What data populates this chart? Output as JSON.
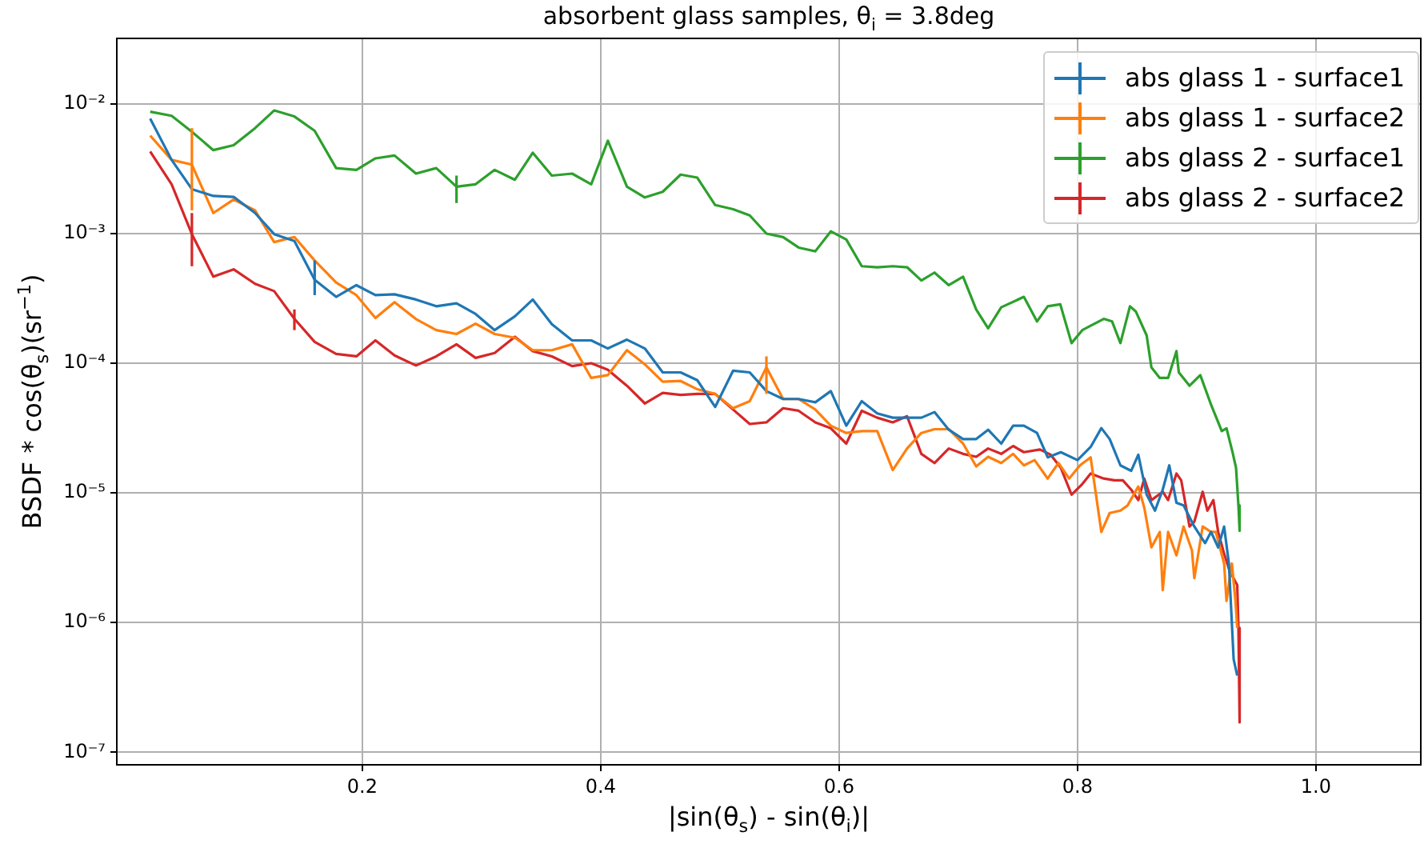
{
  "chart_data": {
    "type": "line",
    "title": "absorbent glass samples, θ$_{i}$ = 3.8deg",
    "xlabel": "|sin(θ$_{s}$) - sin(θ$_{i}$)|",
    "ylabel": "BSDF * cos(θ$_{s}$)(sr$^{−1}$)",
    "log": "y",
    "grid": true,
    "legend": "top right",
    "xlim": [
      -0.006,
      1.088
    ],
    "xticks": [
      0.2,
      0.4,
      0.6,
      0.8,
      {
        "value": 1,
        "label": "1.0"
      }
    ],
    "ylim": [
      8e-08,
      0.032
    ],
    "yticks": [
      {
        "value": 1e-07,
        "label": "10⁻⁷"
      },
      {
        "value": 1e-06,
        "label": "10⁻⁶"
      },
      {
        "value": 1e-05,
        "label": "10⁻⁵"
      },
      {
        "value": 0.0001,
        "label": "10⁻⁴"
      },
      {
        "value": 0.001,
        "label": "10⁻³"
      },
      {
        "value": 0.01,
        "label": "10⁻²"
      }
    ],
    "series": [
      {
        "name": "abs glass 1 - surface1",
        "color": "#1f77b4",
        "x": [
          0.022,
          0.04,
          0.057,
          0.075,
          0.092,
          0.11,
          0.126,
          0.143,
          0.16,
          0.178,
          0.195,
          0.211,
          0.227,
          0.245,
          0.262,
          0.279,
          0.295,
          0.311,
          0.328,
          0.343,
          0.359,
          0.376,
          0.392,
          0.406,
          0.422,
          0.437,
          0.452,
          0.467,
          0.481,
          0.496,
          0.511,
          0.525,
          0.539,
          0.553,
          0.566,
          0.58,
          0.593,
          0.606,
          0.619,
          0.632,
          0.645,
          0.657,
          0.669,
          0.68,
          0.692,
          0.704,
          0.715,
          0.725,
          0.736,
          0.746,
          0.755,
          0.766,
          0.775,
          0.786,
          0.8,
          0.811,
          0.82,
          0.827,
          0.836,
          0.845,
          0.851,
          0.858,
          0.865,
          0.8715,
          0.877,
          0.883,
          0.889,
          0.898,
          0.907,
          0.912,
          0.918,
          0.923,
          0.927,
          0.931,
          0.934
        ],
        "values": [
          0.0077,
          0.0037,
          0.0022,
          0.00195,
          0.00192,
          0.00144,
          0.00099,
          0.000875,
          0.00044,
          0.000325,
          0.0004,
          0.000335,
          0.00034,
          0.00031,
          0.000275,
          0.00029,
          0.00024,
          0.00018,
          0.00023,
          0.00031,
          0.0002,
          0.00015,
          0.00015,
          0.00013,
          0.000152,
          0.00013,
          8.5e-05,
          8.5e-05,
          7.4e-05,
          4.6e-05,
          8.75e-05,
          8.5e-05,
          6.1e-05,
          5.3e-05,
          5.3e-05,
          5e-05,
          6.1e-05,
          3.3e-05,
          5.1e-05,
          4.1e-05,
          3.8e-05,
          3.8e-05,
          3.8e-05,
          4.2e-05,
          3.07e-05,
          2.6e-05,
          2.6e-05,
          3.07e-05,
          2.4e-05,
          3.3e-05,
          3.3e-05,
          2.9e-05,
          1.88e-05,
          2.06e-05,
          1.79e-05,
          2.26e-05,
          3.16e-05,
          2.6e-05,
          1.63e-05,
          1.48e-05,
          1.97e-05,
          9.7e-06,
          7.3e-06,
          1.06e-05,
          1.63e-05,
          8.4e-06,
          8e-06,
          5.5e-06,
          4.1e-06,
          5e-06,
          3.8e-06,
          5.5e-06,
          2.85e-06,
          5.2e-07,
          3.9e-07
        ],
        "errors": [
          null,
          null,
          null,
          null,
          null,
          null,
          null,
          null,
          [
            0.000335,
            0.00062
          ],
          null,
          null,
          null,
          null,
          null,
          null,
          null,
          null,
          null,
          null,
          null,
          null,
          null,
          null,
          null,
          null,
          null,
          null,
          null,
          null,
          null,
          null,
          null,
          null,
          null,
          null,
          null,
          null,
          null,
          null,
          null,
          null,
          null,
          null,
          null,
          null,
          null,
          null,
          null,
          null,
          null,
          null,
          null,
          null,
          null,
          null,
          null,
          null,
          null,
          null,
          null,
          null,
          null,
          null,
          null,
          null,
          null,
          null,
          null,
          null,
          null,
          null,
          null,
          null,
          null,
          null
        ]
      },
      {
        "name": "abs glass 1 - surface2",
        "color": "#ff7f0e",
        "x": [
          0.022,
          0.04,
          0.057,
          0.075,
          0.092,
          0.11,
          0.126,
          0.143,
          0.16,
          0.178,
          0.195,
          0.211,
          0.227,
          0.245,
          0.262,
          0.279,
          0.295,
          0.311,
          0.328,
          0.343,
          0.359,
          0.376,
          0.392,
          0.406,
          0.422,
          0.437,
          0.452,
          0.467,
          0.481,
          0.496,
          0.511,
          0.525,
          0.539,
          0.553,
          0.566,
          0.58,
          0.593,
          0.606,
          0.619,
          0.632,
          0.645,
          0.657,
          0.669,
          0.68,
          0.692,
          0.704,
          0.715,
          0.725,
          0.736,
          0.746,
          0.755,
          0.764,
          0.775,
          0.784,
          0.793,
          0.802,
          0.811,
          0.82,
          0.827,
          0.836,
          0.842,
          0.851,
          0.856,
          0.862,
          0.869,
          0.8715,
          0.876,
          0.883,
          0.889,
          0.896,
          0.898,
          0.905,
          0.912,
          0.916,
          0.923,
          0.925,
          0.9295,
          0.9325,
          0.934
        ],
        "values": [
          0.0057,
          0.0037,
          0.0034,
          0.00144,
          0.00183,
          0.00151,
          0.00086,
          0.00094,
          0.00062,
          0.00042,
          0.000335,
          0.000223,
          0.000296,
          0.000219,
          0.00018,
          0.000168,
          0.000202,
          0.000168,
          0.000157,
          0.000126,
          0.000126,
          0.00014,
          7.7e-05,
          8.1e-05,
          0.000126,
          9.8e-05,
          7.2e-05,
          7.3e-05,
          6.3e-05,
          5.8e-05,
          4.5e-05,
          5.1e-05,
          9.3e-05,
          5.3e-05,
          5.3e-05,
          4.4e-05,
          3.3e-05,
          2.9e-05,
          3e-05,
          3e-05,
          1.5e-05,
          2.2e-05,
          2.9e-05,
          3.1e-05,
          3.1e-05,
          2.4e-05,
          1.6e-05,
          1.9e-05,
          1.7e-05,
          2e-05,
          1.63e-05,
          1.79e-05,
          1.29e-05,
          1.7e-05,
          1.29e-05,
          1.63e-05,
          1.88e-05,
          5e-06,
          7e-06,
          7.3e-06,
          8e-06,
          1.12e-05,
          7.7e-06,
          3.8e-06,
          5e-06,
          1.78e-06,
          5e-06,
          3.3e-06,
          5.5e-06,
          3.6e-06,
          2.2e-06,
          5.5e-06,
          5e-06,
          5e-06,
          2.85e-06,
          1.47e-06,
          2.85e-06,
          1.47e-06,
          9.1e-07
        ],
        "errors": [
          null,
          null,
          [
            0.00151,
            0.0065
          ],
          null,
          null,
          null,
          null,
          null,
          null,
          null,
          null,
          null,
          null,
          null,
          null,
          null,
          null,
          null,
          null,
          null,
          null,
          null,
          null,
          null,
          null,
          null,
          null,
          null,
          null,
          null,
          null,
          null,
          [
            5.8e-05,
            0.000113
          ],
          null,
          null,
          null,
          null,
          null,
          null,
          null,
          null,
          null,
          null,
          null,
          null,
          null,
          null,
          null,
          null,
          null,
          null,
          null,
          null,
          null,
          null,
          null,
          null,
          null,
          null,
          null,
          null,
          null,
          null,
          null,
          null,
          null,
          null,
          null,
          null,
          null,
          null,
          null,
          null,
          null,
          null,
          null,
          null,
          null,
          null
        ]
      },
      {
        "name": "abs glass 2 - surface1",
        "color": "#2ca02c",
        "x": [
          0.022,
          0.04,
          0.057,
          0.075,
          0.092,
          0.11,
          0.126,
          0.143,
          0.16,
          0.178,
          0.195,
          0.211,
          0.227,
          0.245,
          0.262,
          0.279,
          0.295,
          0.311,
          0.328,
          0.343,
          0.359,
          0.376,
          0.392,
          0.406,
          0.422,
          0.437,
          0.452,
          0.467,
          0.481,
          0.496,
          0.511,
          0.525,
          0.539,
          0.553,
          0.566,
          0.58,
          0.593,
          0.606,
          0.619,
          0.632,
          0.645,
          0.657,
          0.669,
          0.68,
          0.692,
          0.704,
          0.715,
          0.725,
          0.736,
          0.755,
          0.766,
          0.775,
          0.7855,
          0.795,
          0.804,
          0.822,
          0.829,
          0.836,
          0.844,
          0.849,
          0.858,
          0.862,
          0.869,
          0.876,
          0.883,
          0.885,
          0.894,
          0.903,
          0.912,
          0.921,
          0.925,
          0.93,
          0.933,
          0.935,
          0.936
        ],
        "values": [
          0.0087,
          0.0081,
          0.0061,
          0.0044,
          0.0048,
          0.0065,
          0.0089,
          0.008,
          0.0062,
          0.0032,
          0.0031,
          0.0038,
          0.004,
          0.0029,
          0.0032,
          0.0023,
          0.0024,
          0.0031,
          0.0026,
          0.0042,
          0.0028,
          0.0029,
          0.0024,
          0.0052,
          0.0023,
          0.0019,
          0.0021,
          0.00285,
          0.0027,
          0.00166,
          0.00154,
          0.00138,
          0.001,
          0.00094,
          0.00078,
          0.00073,
          0.00104,
          0.0009,
          0.00056,
          0.00055,
          0.00056,
          0.00055,
          0.000435,
          0.0005,
          0.0004,
          0.000465,
          0.00026,
          0.000186,
          0.00027,
          0.000325,
          0.00021,
          0.000275,
          0.000285,
          0.000143,
          0.00018,
          0.00022,
          0.00021,
          0.000143,
          0.000275,
          0.00025,
          0.000164,
          9.3e-05,
          7.7e-05,
          7.7e-05,
          0.000124,
          8.5e-05,
          6.7e-05,
          8.1e-05,
          4.8e-05,
          3e-05,
          3.15e-05,
          2.07e-05,
          1.56e-05,
          8e-06,
          5.1e-06
        ],
        "errors": [
          null,
          null,
          null,
          null,
          null,
          null,
          null,
          null,
          null,
          null,
          null,
          null,
          null,
          null,
          null,
          [
            0.00172,
            0.0028
          ],
          null,
          null,
          null,
          null,
          null,
          null,
          null,
          null,
          null,
          null,
          null,
          null,
          null,
          null,
          null,
          null,
          null,
          null,
          null,
          null,
          null,
          null,
          null,
          null,
          null,
          null,
          null,
          null,
          null,
          null,
          null,
          null,
          null,
          null,
          null,
          null,
          null,
          null,
          null,
          null,
          null,
          null,
          null,
          null,
          null,
          null,
          null,
          null,
          null,
          null,
          null,
          null,
          null,
          null,
          null,
          null,
          null,
          null,
          null
        ]
      },
      {
        "name": "abs glass 2 - surface2",
        "color": "#d62728",
        "x": [
          0.022,
          0.04,
          0.057,
          0.075,
          0.092,
          0.11,
          0.126,
          0.143,
          0.16,
          0.178,
          0.195,
          0.211,
          0.227,
          0.245,
          0.262,
          0.279,
          0.295,
          0.311,
          0.328,
          0.343,
          0.359,
          0.376,
          0.392,
          0.406,
          0.422,
          0.437,
          0.452,
          0.467,
          0.481,
          0.496,
          0.511,
          0.525,
          0.539,
          0.553,
          0.566,
          0.58,
          0.593,
          0.606,
          0.619,
          0.632,
          0.645,
          0.657,
          0.669,
          0.68,
          0.692,
          0.704,
          0.715,
          0.725,
          0.736,
          0.746,
          0.755,
          0.7685,
          0.7775,
          0.786,
          0.795,
          0.804,
          0.811,
          0.822,
          0.831,
          0.838,
          0.845,
          0.851,
          0.856,
          0.862,
          0.8715,
          0.876,
          0.883,
          0.887,
          0.894,
          0.898,
          0.905,
          0.909,
          0.914,
          0.918,
          0.923,
          0.927,
          0.932,
          0.934,
          0.935,
          0.936
        ],
        "values": [
          0.0043,
          0.0024,
          0.00099,
          0.000465,
          0.00053,
          0.00041,
          0.00036,
          0.00022,
          0.000146,
          0.000118,
          0.000113,
          0.00015,
          0.000115,
          9.6e-05,
          0.000113,
          0.00014,
          0.00011,
          0.00012,
          0.00016,
          0.000124,
          0.000113,
          9.5e-05,
          0.0001,
          8.9e-05,
          6.7e-05,
          4.9e-05,
          5.9e-05,
          5.7e-05,
          5.8e-05,
          5.8e-05,
          4.4e-05,
          3.4e-05,
          3.5e-05,
          4.5e-05,
          4.3e-05,
          3.5e-05,
          3.15e-05,
          2.4e-05,
          4.3e-05,
          3.8e-05,
          3.5e-05,
          3.9e-05,
          2e-05,
          1.7e-05,
          2.2e-05,
          2e-05,
          1.9e-05,
          2.2e-05,
          2e-05,
          2.3e-05,
          2.06e-05,
          2.16e-05,
          1.97e-05,
          1.56e-05,
          9.7e-06,
          1.17e-05,
          1.41e-05,
          1.29e-05,
          1.25e-05,
          1.25e-05,
          1.06e-05,
          8.8e-06,
          1.29e-05,
          8.8e-06,
          1.02e-05,
          8.8e-06,
          1.41e-05,
          1.25e-05,
          5.5e-06,
          6e-06,
          1.02e-05,
          7.3e-06,
          8.8e-06,
          5e-06,
          3.4e-06,
          2.6e-06,
          2.1e-06,
          1.95e-06,
          9.1e-07,
          1.7e-07
        ],
        "errors": [
          null,
          null,
          [
            0.00056,
            0.00144
          ],
          null,
          null,
          null,
          null,
          [
            0.00018,
            0.00026
          ],
          null,
          null,
          null,
          null,
          null,
          null,
          null,
          null,
          null,
          null,
          null,
          null,
          null,
          null,
          null,
          null,
          null,
          null,
          null,
          null,
          null,
          null,
          null,
          null,
          null,
          null,
          null,
          null,
          null,
          null,
          null,
          null,
          null,
          null,
          null,
          null,
          null,
          null,
          null,
          null,
          null,
          null,
          null,
          null,
          null,
          null,
          null,
          null,
          null,
          null,
          null,
          null,
          null,
          null,
          null,
          null,
          null,
          null,
          null,
          null,
          null,
          null,
          null,
          null,
          null,
          null,
          null,
          null,
          null,
          null,
          null,
          null
        ]
      }
    ]
  }
}
